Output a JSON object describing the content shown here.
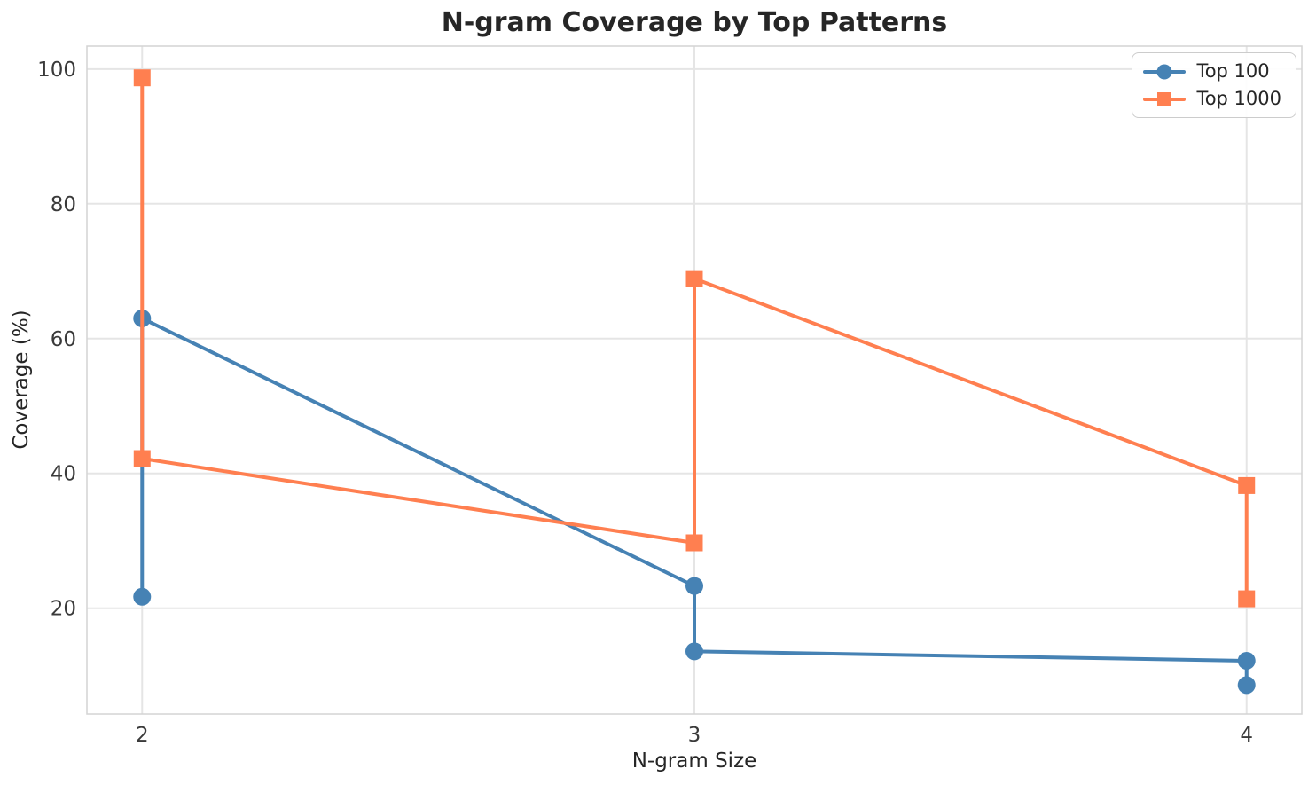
{
  "chart_data": {
    "type": "line",
    "title": "N-gram Coverage by Top Patterns",
    "xlabel": "N-gram Size",
    "ylabel": "Coverage (%)",
    "xlim": [
      1.9,
      4.1
    ],
    "ylim": [
      4.3,
      103.4
    ],
    "xticks": [
      2,
      3,
      4
    ],
    "yticks": [
      20,
      40,
      60,
      80,
      100
    ],
    "grid": true,
    "legend_position": "upper-right",
    "style": {
      "background": "#ffffff",
      "grid_color": "#e5e5e5",
      "spine_color": "#d4d4d4",
      "text_color": "#262626",
      "blue_accent": "#4682B4",
      "orange_accent": "#FF7F50"
    },
    "series": [
      {
        "name": "Top 100",
        "color": "#4682B4",
        "marker": "circle",
        "points": [
          [
            2,
            21.7
          ],
          [
            2,
            63.0
          ],
          [
            3,
            23.3
          ],
          [
            3,
            13.6
          ],
          [
            4,
            12.2
          ],
          [
            4,
            8.6
          ]
        ]
      },
      {
        "name": "Top 1000",
        "color": "#FF7F50",
        "marker": "square",
        "points": [
          [
            2,
            98.7
          ],
          [
            2,
            42.2
          ],
          [
            3,
            29.7
          ],
          [
            3,
            68.9
          ],
          [
            4,
            38.2
          ],
          [
            4,
            21.4
          ]
        ]
      }
    ]
  }
}
